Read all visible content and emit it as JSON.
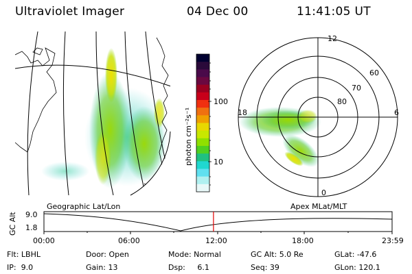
{
  "header": {
    "instrument": "Ultraviolet Imager",
    "date": "04 Dec 00",
    "time": "11:41:05 UT"
  },
  "panels": {
    "left_caption": "Geographic Lat/Lon",
    "right_caption": "Apex MLat/MLT"
  },
  "colorbar": {
    "unit_label": "photon cm⁻²s⁻¹",
    "scale": "log",
    "ticks": [
      "100",
      "10"
    ],
    "colors": [
      "#000030",
      "#2a0a3a",
      "#4a0a4a",
      "#6a0840",
      "#9a0020",
      "#c8001a",
      "#f03010",
      "#f07010",
      "#f0a000",
      "#e8d800",
      "#c8e800",
      "#90e000",
      "#50d020",
      "#20c080",
      "#20d8d0",
      "#60e0f0",
      "#b0f0f0",
      "#e8f8f8"
    ]
  },
  "polar": {
    "mlt_labels": [
      "12",
      "18",
      "6",
      "0"
    ],
    "mlat_labels": [
      "60",
      "70",
      "80"
    ]
  },
  "timeline": {
    "axis_label": "GC Alt",
    "y_ticks": [
      "9.0",
      "1.8"
    ],
    "x_ticks": [
      "00:00",
      "06:00",
      "12:00",
      "18:00",
      "23:59"
    ],
    "current_time_fraction": 0.4869,
    "marker_color": "#e00000"
  },
  "footer": {
    "rows": [
      [
        "Flt: LBHL",
        "Door: Open",
        "Mode: Normal",
        "GC Alt: 5.0 Re",
        "GLat: -47.6"
      ],
      [
        "IP:  9.0",
        "Gain: 13",
        "Dsp:     6.1",
        "Seq: 39",
        "GLon: 120.1"
      ]
    ]
  }
}
